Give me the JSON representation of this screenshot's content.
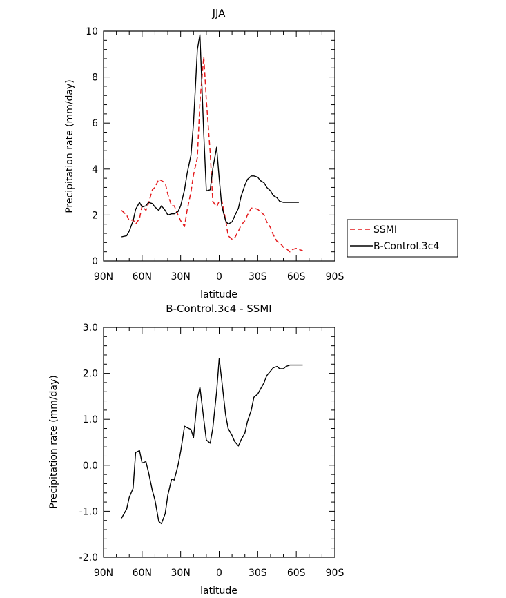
{
  "chart_data": [
    {
      "type": "line",
      "title": "JJA",
      "xlabel": "latitude",
      "ylabel": "Precipitation rate (mm/day)",
      "xlim": [
        90,
        -90
      ],
      "ylim": [
        0,
        10
      ],
      "xticks": [
        90,
        60,
        30,
        0,
        -30,
        -60,
        -90
      ],
      "xtick_labels": [
        "90N",
        "60N",
        "30N",
        "0",
        "30S",
        "60S",
        "90S"
      ],
      "yticks": [
        0,
        2,
        4,
        6,
        8,
        10
      ],
      "ytick_labels": [
        "0",
        "2",
        "4",
        "6",
        "8",
        "10"
      ],
      "legend": {
        "placement": "right"
      },
      "series": [
        {
          "name": "SSMI",
          "color": "#e41a1c",
          "dash": true,
          "x": [
            76,
            72,
            70,
            67,
            65,
            62,
            60,
            57,
            55,
            52,
            50,
            47,
            45,
            42,
            40,
            37,
            35,
            32,
            30,
            27,
            25,
            22,
            20,
            17,
            15,
            12,
            10,
            7,
            5,
            2,
            0,
            -2,
            -5,
            -7,
            -10,
            -12,
            -15,
            -17,
            -20,
            -22,
            -25,
            -27,
            -30,
            -32,
            -35,
            -37,
            -40,
            -42,
            -45,
            -47,
            -50,
            -52,
            -55,
            -57,
            -60,
            -62,
            -65
          ],
          "y": [
            2.2,
            2.0,
            1.75,
            1.8,
            1.6,
            1.85,
            2.4,
            2.2,
            2.5,
            3.1,
            3.2,
            3.55,
            3.5,
            3.4,
            2.9,
            2.4,
            2.4,
            2.0,
            1.75,
            1.5,
            2.2,
            3.0,
            3.75,
            4.5,
            6.9,
            8.9,
            7.0,
            4.7,
            2.6,
            2.35,
            2.6,
            2.65,
            1.8,
            1.1,
            0.95,
            1.0,
            1.3,
            1.55,
            1.75,
            2.0,
            2.3,
            2.3,
            2.25,
            2.15,
            2.0,
            1.7,
            1.45,
            1.15,
            0.85,
            0.8,
            0.6,
            0.55,
            0.4,
            0.5,
            0.55,
            0.5,
            0.45
          ]
        },
        {
          "name": "B-Control.3c4",
          "color": "#000000",
          "dash": false,
          "x": [
            76,
            72,
            70,
            67,
            65,
            62,
            60,
            57,
            55,
            52,
            50,
            47,
            45,
            42,
            40,
            37,
            35,
            32,
            30,
            27,
            25,
            22,
            20,
            17,
            15,
            12,
            10,
            7,
            5,
            2,
            0,
            -2,
            -5,
            -7,
            -10,
            -12,
            -15,
            -17,
            -20,
            -22,
            -25,
            -27,
            -30,
            -32,
            -35,
            -37,
            -40,
            -42,
            -45,
            -47,
            -50,
            -52,
            -55,
            -57,
            -60,
            -62
          ],
          "y": [
            1.05,
            1.1,
            1.3,
            1.75,
            2.25,
            2.55,
            2.35,
            2.4,
            2.55,
            2.5,
            2.35,
            2.2,
            2.4,
            2.2,
            2.0,
            2.05,
            2.05,
            2.15,
            2.4,
            3.1,
            3.8,
            4.6,
            6.0,
            9.2,
            9.85,
            5.5,
            3.05,
            3.1,
            4.0,
            4.95,
            3.6,
            2.4,
            1.75,
            1.6,
            1.7,
            1.95,
            2.3,
            2.8,
            3.3,
            3.55,
            3.7,
            3.7,
            3.65,
            3.5,
            3.4,
            3.2,
            3.05,
            2.85,
            2.75,
            2.6,
            2.55,
            2.55,
            2.55,
            2.55,
            2.55,
            2.55
          ]
        }
      ]
    },
    {
      "type": "line",
      "title": "B-Control.3c4 - SSMI",
      "xlabel": "latitude",
      "ylabel": "Precipitation rate (mm/day)",
      "xlim": [
        90,
        -90
      ],
      "ylim": [
        -2,
        3
      ],
      "xticks": [
        90,
        60,
        30,
        0,
        -30,
        -60,
        -90
      ],
      "xtick_labels": [
        "90N",
        "60N",
        "30N",
        "0",
        "30S",
        "60S",
        "90S"
      ],
      "yticks": [
        -2,
        -1,
        0,
        1,
        2,
        3
      ],
      "ytick_labels": [
        "-2.0",
        "-1.0",
        "0.0",
        "1.0",
        "2.0",
        "3.0"
      ],
      "series": [
        {
          "color": "#000000",
          "dash": false,
          "x": [
            76,
            72,
            70,
            67,
            65,
            62,
            60,
            57,
            55,
            52,
            50,
            47,
            45,
            42,
            40,
            37,
            35,
            32,
            30,
            27,
            25,
            22,
            20,
            17,
            15,
            12,
            10,
            7,
            5,
            2,
            0,
            -2,
            -5,
            -7,
            -10,
            -12,
            -15,
            -17,
            -20,
            -22,
            -25,
            -27,
            -30,
            -32,
            -35,
            -37,
            -40,
            -42,
            -45,
            -47,
            -50,
            -52,
            -55,
            -57,
            -60,
            -62,
            -65
          ],
          "y": [
            -1.15,
            -0.95,
            -0.7,
            -0.5,
            0.28,
            0.32,
            0.05,
            0.08,
            -0.15,
            -0.55,
            -0.75,
            -1.22,
            -1.27,
            -1.05,
            -0.65,
            -0.3,
            -0.32,
            0.0,
            0.3,
            0.85,
            0.82,
            0.78,
            0.6,
            1.45,
            1.7,
            1.0,
            0.55,
            0.48,
            0.8,
            1.6,
            2.32,
            1.85,
            1.1,
            0.8,
            0.65,
            0.52,
            0.42,
            0.55,
            0.7,
            0.95,
            1.2,
            1.48,
            1.55,
            1.65,
            1.8,
            1.95,
            2.05,
            2.12,
            2.15,
            2.1,
            2.1,
            2.15,
            2.18,
            2.18,
            2.18,
            2.18,
            2.18
          ]
        }
      ]
    }
  ]
}
